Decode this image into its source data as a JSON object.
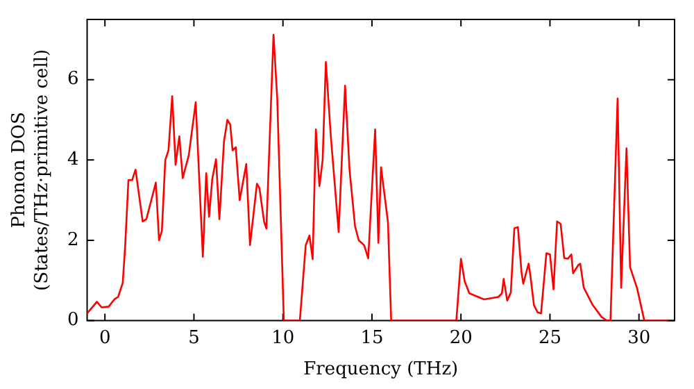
{
  "chart_data": {
    "type": "line",
    "xlabel": "Frequency (THz)",
    "ylabel": "Phonon DOS\n(States/THz·primitive cell)",
    "x": [
      -1,
      -0.45,
      -0.19,
      0.21,
      0.53,
      0.74,
      1.0,
      1.14,
      1.32,
      1.53,
      1.72,
      2.12,
      2.33,
      2.86,
      3.04,
      3.2,
      3.39,
      3.57,
      3.78,
      3.97,
      4.18,
      4.37,
      4.71,
      5.1,
      5.5,
      5.69,
      5.85,
      6.03,
      6.24,
      6.43,
      6.69,
      6.88,
      7.04,
      7.17,
      7.35,
      7.57,
      7.94,
      8.15,
      8.54,
      8.68,
      8.94,
      9.07,
      9.47,
      9.68,
      10.05,
      10.95,
      11.28,
      11.49,
      11.67,
      11.85,
      12.05,
      12.23,
      12.41,
      12.69,
      13.13,
      13.49,
      13.74,
      14.05,
      14.26,
      14.56,
      14.79,
      15.18,
      15.36,
      15.51,
      15.9,
      16.08,
      19.74,
      20.0,
      20.21,
      20.47,
      21.3,
      22.1,
      22.3,
      22.4,
      22.6,
      22.8,
      23.0,
      23.2,
      23.4,
      23.5,
      23.8,
      23.9,
      24.1,
      24.3,
      24.5,
      24.8,
      25.0,
      25.2,
      25.4,
      25.6,
      25.8,
      26.0,
      26.2,
      26.3,
      26.6,
      26.7,
      26.9,
      27.4,
      27.9,
      28.2,
      28.4,
      28.8,
      29.0,
      29.3,
      29.5,
      29.9,
      30.3,
      31.7
    ],
    "series": [
      {
        "color": "#ff0000",
        "values": [
          0.18,
          0.47,
          0.33,
          0.35,
          0.53,
          0.59,
          0.94,
          1.88,
          3.5,
          3.5,
          3.76,
          2.47,
          2.53,
          3.44,
          2.0,
          2.24,
          4.0,
          4.24,
          5.59,
          3.88,
          4.59,
          3.55,
          4.12,
          5.44,
          1.59,
          3.67,
          2.59,
          3.53,
          4.02,
          2.53,
          4.47,
          5.0,
          4.88,
          4.24,
          4.32,
          3.0,
          3.9,
          1.88,
          3.41,
          3.3,
          2.47,
          2.29,
          7.12,
          5.53,
          0,
          0,
          1.88,
          2.12,
          1.53,
          4.76,
          3.35,
          4.0,
          6.44,
          4.59,
          2.21,
          5.85,
          3.76,
          2.35,
          2.0,
          1.88,
          1.55,
          4.76,
          1.94,
          3.82,
          2.45,
          0,
          0,
          1.54,
          0.98,
          0.68,
          0.53,
          0.59,
          0.68,
          1.04,
          0.5,
          0.7,
          2.3,
          2.33,
          1.21,
          0.92,
          1.42,
          1.12,
          0.39,
          0.21,
          0.18,
          1.68,
          1.65,
          0.78,
          2.47,
          2.41,
          1.56,
          1.54,
          1.65,
          1.18,
          1.39,
          1.42,
          0.82,
          0.39,
          0.09,
          0,
          0,
          5.53,
          0.82,
          4.29,
          1.33,
          0.8,
          0,
          0
        ]
      }
    ],
    "xlim": [
      -1,
      32
    ],
    "xticks": [
      0,
      5,
      10,
      15,
      20,
      25,
      30
    ],
    "ylim": [
      0,
      7.5
    ],
    "yticks": [
      0,
      2,
      4,
      6
    ],
    "legend": false,
    "marker": "none",
    "line_style": "solid"
  }
}
